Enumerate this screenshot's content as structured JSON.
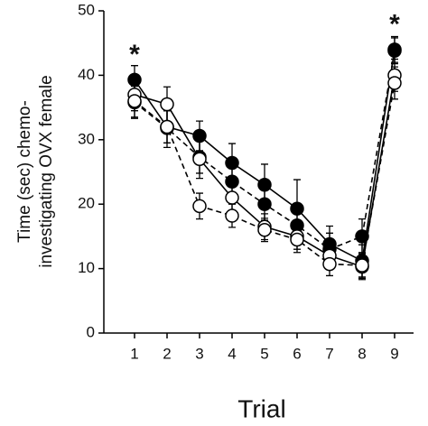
{
  "chart_data": {
    "type": "line",
    "xlabel": "Trial",
    "ylabel": [
      "Time (sec) chemo-",
      "investigating OVX female"
    ],
    "categories": [
      "1",
      "2",
      "3",
      "4",
      "5",
      "6",
      "7",
      "8",
      "9"
    ],
    "ylim": [
      0,
      50
    ],
    "yticks": [
      0,
      10,
      20,
      30,
      40,
      50
    ],
    "series": [
      {
        "color": "#000",
        "marker_fill": "#000",
        "dashed": false,
        "values": [
          39.3,
          32,
          30.6,
          26.4,
          23,
          19.3,
          13.8,
          11.2,
          44
        ],
        "errors": [
          2.2,
          2.5,
          2.3,
          3,
          3.2,
          4.5,
          2.8,
          2.5,
          2
        ]
      },
      {
        "color": "#000",
        "marker_fill": "#000",
        "dashed": true,
        "values": [
          35.8,
          31.8,
          27.3,
          23.5,
          20,
          16.7,
          13,
          15,
          43.8
        ],
        "errors": [
          2.5,
          3,
          2.5,
          2.5,
          2.5,
          2.5,
          2.5,
          2.7,
          2
        ]
      },
      {
        "color": "#000",
        "marker_fill": "#fff",
        "dashed": false,
        "values": [
          37,
          35.5,
          27,
          21,
          16.5,
          15,
          12,
          10.3,
          40
        ],
        "errors": [
          2.5,
          2.7,
          3,
          2.5,
          2,
          2,
          2,
          2,
          2.5
        ]
      },
      {
        "color": "#000",
        "marker_fill": "#fff",
        "dashed": true,
        "values": [
          36,
          32,
          19.7,
          18.2,
          16,
          14.5,
          10.7,
          10.5,
          38.8
        ],
        "errors": [
          2.5,
          2.5,
          2,
          1.8,
          1.8,
          2,
          1.8,
          2,
          2.5
        ]
      }
    ],
    "annotations": [
      {
        "text": "*",
        "category": 0,
        "y": 43.8
      },
      {
        "text": "*",
        "category": 8,
        "y": 48.5
      }
    ]
  }
}
